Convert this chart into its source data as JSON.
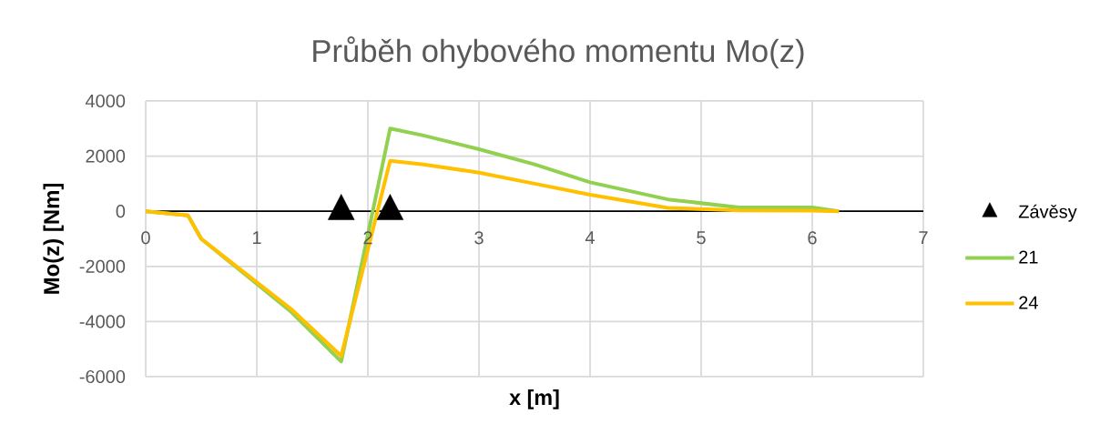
{
  "chart_data": {
    "type": "line",
    "title": "Průběh ohybového momentu Mo(z)",
    "xlabel": "x [m]",
    "ylabel": "Mo(z) [Nm]",
    "xlim": [
      0,
      7
    ],
    "ylim": [
      -6000,
      4000
    ],
    "xticks": [
      0,
      1,
      2,
      3,
      4,
      5,
      6,
      7
    ],
    "yticks": [
      -6000,
      -4000,
      -2000,
      0,
      2000,
      4000
    ],
    "grid": true,
    "legend": "right",
    "x": [
      0,
      0.38,
      0.5,
      1.31,
      1.76,
      2.2,
      2.5,
      3,
      3.5,
      4,
      4.7,
      5.34,
      6,
      6.24
    ],
    "series": [
      {
        "name": "Závěsy",
        "type": "scatter",
        "marker": "triangle",
        "color": "#000000",
        "x": [
          1.76,
          2.2
        ],
        "values": [
          0,
          0
        ]
      },
      {
        "name": "21",
        "color": "#92d050",
        "values": [
          0,
          -150,
          -1000,
          -3650,
          -5450,
          3000,
          2750,
          2250,
          1700,
          1050,
          430,
          140,
          140,
          0
        ]
      },
      {
        "name": "24",
        "color": "#ffc000",
        "values": [
          0,
          -150,
          -1000,
          -3550,
          -5250,
          1830,
          1700,
          1400,
          1000,
          600,
          120,
          30,
          20,
          0
        ]
      }
    ]
  }
}
